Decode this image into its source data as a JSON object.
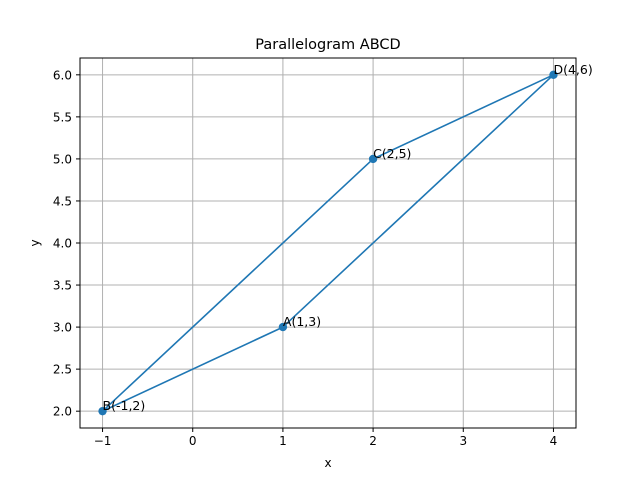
{
  "chart_data": {
    "type": "line",
    "title": "Parallelogram ABCD",
    "xlabel": "x",
    "ylabel": "y",
    "xlim": [
      -1.25,
      4.25
    ],
    "ylim": [
      1.8,
      6.2
    ],
    "xticks": [
      -1,
      0,
      1,
      2,
      3,
      4
    ],
    "xtick_labels": [
      "−1",
      "0",
      "1",
      "2",
      "3",
      "4"
    ],
    "yticks": [
      2.0,
      2.5,
      3.0,
      3.5,
      4.0,
      4.5,
      5.0,
      5.5,
      6.0
    ],
    "ytick_labels": [
      "2.0",
      "2.5",
      "3.0",
      "3.5",
      "4.0",
      "4.5",
      "5.0",
      "5.5",
      "6.0"
    ],
    "grid": true,
    "line_color": "#1f77b4",
    "grid_color": "#b0b0b0",
    "path": [
      {
        "label": "A(1,3)",
        "x": 1,
        "y": 3
      },
      {
        "label": "B(-1,2)",
        "x": -1,
        "y": 2
      },
      {
        "label": "C(2,5)",
        "x": 2,
        "y": 5
      },
      {
        "label": "D(4,6)",
        "x": 4,
        "y": 6
      },
      {
        "label": "A(1,3)",
        "x": 1,
        "y": 3
      }
    ],
    "points": [
      {
        "label": "A(1,3)",
        "x": 1,
        "y": 3
      },
      {
        "label": "B(-1,2)",
        "x": -1,
        "y": 2
      },
      {
        "label": "C(2,5)",
        "x": 2,
        "y": 5
      },
      {
        "label": "D(4,6)",
        "x": 4,
        "y": 6
      }
    ]
  }
}
